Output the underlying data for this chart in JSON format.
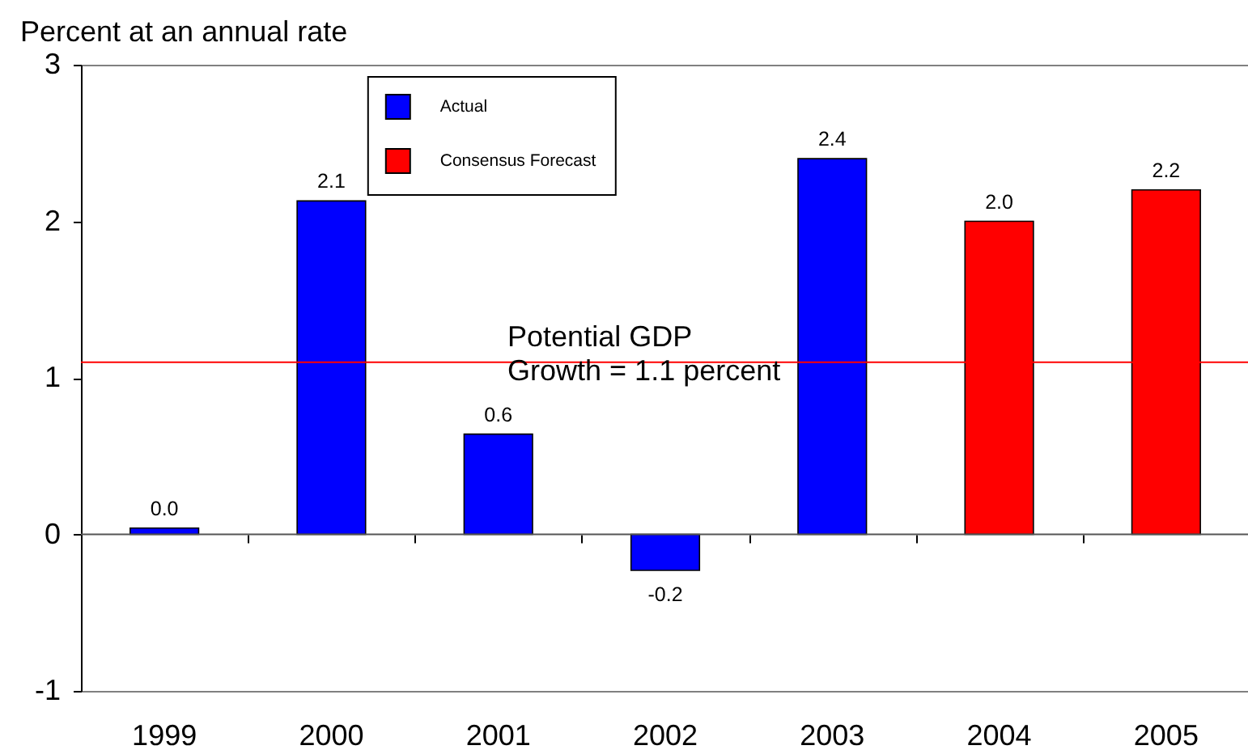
{
  "chart_data": {
    "type": "bar",
    "ylabel": "Percent at an annual rate",
    "categories": [
      "1999",
      "2000",
      "2001",
      "2002",
      "2003",
      "2004",
      "2005"
    ],
    "series": [
      {
        "name": "Actual",
        "color": "#0000ff",
        "values": [
          0.04,
          2.13,
          0.64,
          -0.23,
          2.4,
          null,
          null
        ],
        "value_labels": [
          "0.0",
          "2.1",
          "0.6",
          "-0.2",
          "2.4",
          null,
          null
        ]
      },
      {
        "name": "Consensus Forecast",
        "color": "#ff0000",
        "values": [
          null,
          null,
          null,
          null,
          null,
          2.0,
          2.2
        ],
        "value_labels": [
          null,
          null,
          null,
          null,
          null,
          "2.0",
          "2.2"
        ]
      }
    ],
    "ylim": [
      -1,
      3
    ],
    "yticks": [
      -1,
      0,
      1,
      2,
      3
    ],
    "grid": false,
    "legend": "top",
    "ref_lines": [
      {
        "axis": "y",
        "value": 0,
        "color": "#555555"
      },
      {
        "axis": "y",
        "value": 1.1,
        "label": "Potential GDP\nGrowth = 1.1 percent",
        "color": "#ff0000"
      }
    ]
  }
}
